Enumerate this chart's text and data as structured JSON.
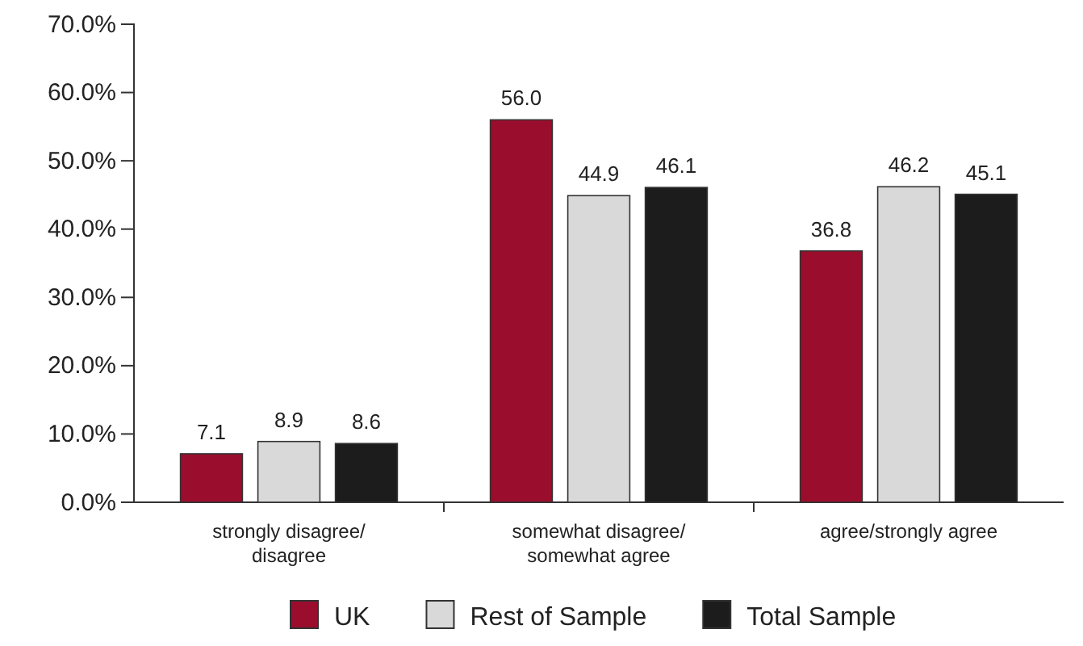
{
  "chart_data": {
    "type": "bar",
    "categories": [
      "strongly disagree/ disagree",
      "somewhat disagree/ somewhat agree",
      "agree/strongly agree"
    ],
    "series": [
      {
        "name": "UK",
        "color": "#9b0d2c",
        "values": [
          7.1,
          56.0,
          36.8
        ],
        "value_labels": [
          "7.1",
          "56.0",
          "36.8"
        ]
      },
      {
        "name": "Rest of Sample",
        "color": "#d9d9d9",
        "values": [
          8.9,
          44.9,
          46.2
        ],
        "value_labels": [
          "8.9",
          "44.9",
          "46.2"
        ]
      },
      {
        "name": "Total Sample",
        "color": "#1c1c1c",
        "values": [
          8.6,
          46.1,
          45.1
        ],
        "value_labels": [
          "8.6",
          "46.1",
          "45.1"
        ]
      }
    ],
    "ylim": [
      0,
      70
    ],
    "yticks": [
      {
        "value": 0,
        "label": "0.0%"
      },
      {
        "value": 10,
        "label": "10.0%"
      },
      {
        "value": 20,
        "label": "20.0%"
      },
      {
        "value": 30,
        "label": "30.0%"
      },
      {
        "value": 40,
        "label": "40.0%"
      },
      {
        "value": 50,
        "label": "50.0%"
      },
      {
        "value": 60,
        "label": "60.0%"
      },
      {
        "value": 70,
        "label": "70.0%"
      }
    ],
    "legend": "bottom",
    "grid": false
  }
}
